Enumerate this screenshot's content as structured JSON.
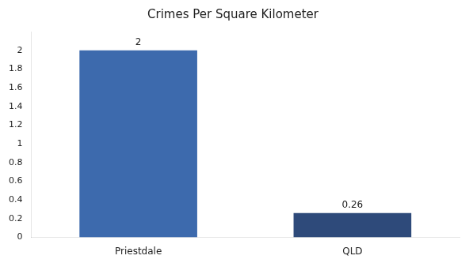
{
  "chart_data": {
    "type": "bar",
    "title": "Crimes Per Square Kilometer",
    "categories": [
      "Priestdale",
      "QLD"
    ],
    "values": [
      2.0,
      0.26
    ],
    "colors": [
      "#3d6aad",
      "#2e4a7a"
    ],
    "ylim": [
      0,
      2.2
    ],
    "yticks": [
      0,
      0.2,
      0.4,
      0.6,
      0.8,
      1,
      1.2,
      1.4,
      1.6,
      1.8,
      2
    ],
    "grid": false,
    "data_labels": true
  }
}
